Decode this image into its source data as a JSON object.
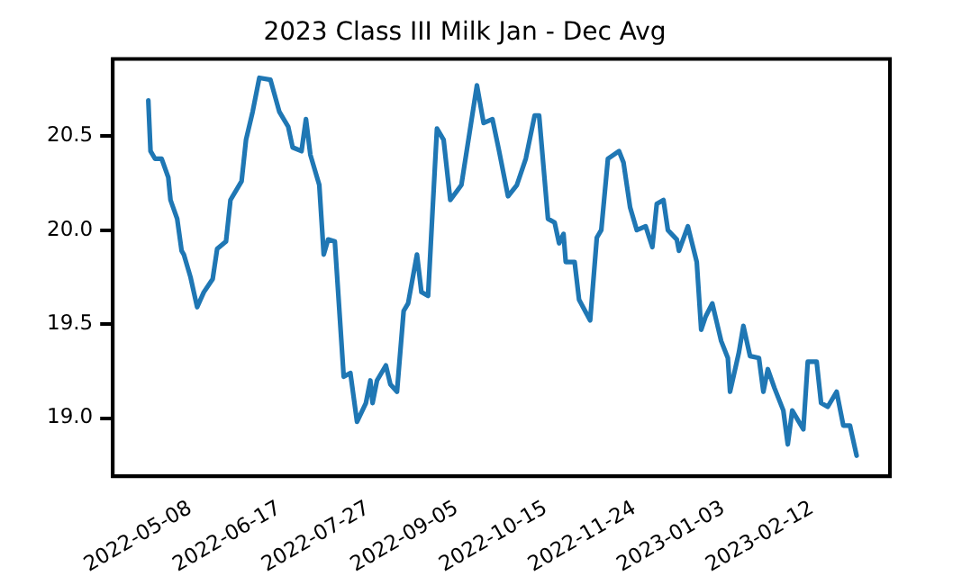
{
  "chart_data": {
    "type": "line",
    "title": "2023 Class III Milk Jan - Dec Avg",
    "x": [
      "2022-04-19",
      "2022-04-20",
      "2022-04-22",
      "2022-04-25",
      "2022-04-28",
      "2022-04-29",
      "2022-05-02",
      "2022-05-04",
      "2022-05-05",
      "2022-05-08",
      "2022-05-11",
      "2022-05-14",
      "2022-05-18",
      "2022-05-20",
      "2022-05-24",
      "2022-05-26",
      "2022-05-31",
      "2022-06-02",
      "2022-06-05",
      "2022-06-08",
      "2022-06-13",
      "2022-06-17",
      "2022-06-21",
      "2022-06-23",
      "2022-06-27",
      "2022-06-29",
      "2022-07-01",
      "2022-07-05",
      "2022-07-07",
      "2022-07-09",
      "2022-07-12",
      "2022-07-16",
      "2022-07-19",
      "2022-07-22",
      "2022-07-26",
      "2022-07-28",
      "2022-07-29",
      "2022-07-31",
      "2022-08-04",
      "2022-08-06",
      "2022-08-09",
      "2022-08-12",
      "2022-08-14",
      "2022-08-18",
      "2022-08-20",
      "2022-08-23",
      "2022-08-25",
      "2022-08-27",
      "2022-08-30",
      "2022-09-02",
      "2022-09-07",
      "2022-09-14",
      "2022-09-17",
      "2022-09-21",
      "2022-09-24",
      "2022-09-28",
      "2022-10-02",
      "2022-10-06",
      "2022-10-10",
      "2022-10-12",
      "2022-10-16",
      "2022-10-19",
      "2022-10-21",
      "2022-10-23",
      "2022-10-24",
      "2022-10-28",
      "2022-10-30",
      "2022-11-04",
      "2022-11-07",
      "2022-11-09",
      "2022-11-12",
      "2022-11-17",
      "2022-11-19",
      "2022-11-22",
      "2022-11-25",
      "2022-11-29",
      "2022-12-02",
      "2022-12-04",
      "2022-12-07",
      "2022-12-09",
      "2022-12-13",
      "2022-12-14",
      "2022-12-18",
      "2022-12-22",
      "2022-12-24",
      "2022-12-26",
      "2022-12-29",
      "2022-12-31",
      "2023-01-02",
      "2023-01-05",
      "2023-01-06",
      "2023-01-10",
      "2023-01-12",
      "2023-01-15",
      "2023-01-19",
      "2023-01-21",
      "2023-01-23",
      "2023-01-26",
      "2023-01-30",
      "2023-02-01",
      "2023-02-03",
      "2023-02-06",
      "2023-02-08",
      "2023-02-10",
      "2023-02-14",
      "2023-02-16",
      "2023-02-19",
      "2023-02-23",
      "2023-02-26",
      "2023-03-01",
      "2023-03-04"
    ],
    "series": [
      {
        "color": "#1f77b4",
        "values": [
          20.69,
          20.42,
          20.38,
          20.38,
          20.28,
          20.16,
          20.06,
          19.89,
          19.87,
          19.75,
          19.59,
          19.67,
          19.74,
          19.9,
          19.94,
          20.16,
          20.26,
          20.48,
          20.63,
          20.81,
          20.8,
          20.63,
          20.55,
          20.44,
          20.42,
          20.59,
          20.4,
          20.24,
          19.87,
          19.95,
          19.94,
          19.22,
          19.24,
          18.98,
          19.08,
          19.2,
          19.08,
          19.2,
          19.28,
          19.18,
          19.14,
          19.57,
          19.61,
          19.87,
          19.67,
          19.65,
          20.1,
          20.54,
          20.48,
          20.16,
          20.24,
          20.77,
          20.57,
          20.59,
          20.42,
          20.18,
          20.24,
          20.38,
          20.61,
          20.61,
          20.06,
          20.04,
          19.93,
          19.98,
          19.83,
          19.83,
          19.63,
          19.52,
          19.96,
          20.0,
          20.38,
          20.42,
          20.36,
          20.12,
          20.0,
          20.02,
          19.91,
          20.14,
          20.16,
          20.0,
          19.95,
          19.89,
          20.02,
          19.83,
          19.47,
          19.54,
          19.61,
          19.51,
          19.41,
          19.32,
          19.14,
          19.35,
          19.49,
          19.33,
          19.32,
          19.14,
          19.26,
          19.16,
          19.04,
          18.86,
          19.04,
          18.98,
          18.94,
          19.3,
          19.3,
          19.08,
          19.06,
          19.14,
          18.96,
          18.96,
          18.8
        ]
      }
    ],
    "xlim": [
      "2022-04-03",
      "2023-03-19"
    ],
    "xticks": [
      "2022-05-08",
      "2022-06-17",
      "2022-07-27",
      "2022-09-05",
      "2022-10-15",
      "2022-11-24",
      "2023-01-03",
      "2023-02-12"
    ],
    "ylim": [
      18.69,
      20.91
    ],
    "yticks": [
      {
        "value": 19,
        "label": "19.0"
      },
      {
        "value": 19.5,
        "label": "19.5"
      },
      {
        "value": 20,
        "label": "20.0"
      },
      {
        "value": 20.5,
        "label": "20.5"
      }
    ],
    "grid": false,
    "legend": false,
    "marker": "none",
    "line_style": "solid"
  }
}
